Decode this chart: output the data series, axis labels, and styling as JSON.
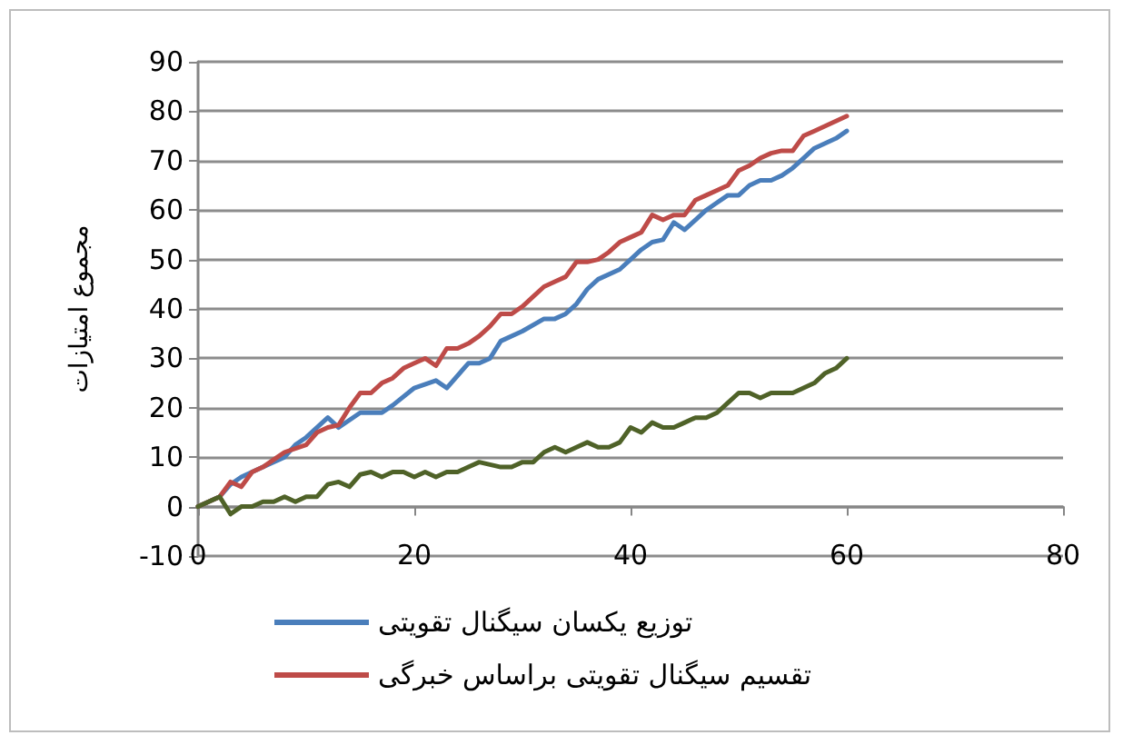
{
  "chart_data": {
    "type": "line",
    "ylabel": "مجموع امتیازات",
    "xlim": [
      0,
      80
    ],
    "xticks": [
      0,
      20,
      40,
      60,
      80
    ],
    "ylim": [
      -10,
      90
    ],
    "yticks": [
      -10,
      0,
      10,
      20,
      30,
      40,
      50,
      60,
      70,
      80,
      90
    ],
    "grid": "y",
    "legend": "bottom",
    "marker": "none",
    "line_style": "solid",
    "series": [
      {
        "name": "توزیع یکسان سیگنال تقویتی",
        "color": "#4a7ebb",
        "x": [
          0,
          2,
          3,
          4,
          6,
          8,
          9,
          10,
          12,
          13,
          15,
          17,
          18,
          20,
          22,
          23,
          25,
          26,
          27,
          28,
          30,
          32,
          33,
          34,
          35,
          36,
          37,
          39,
          40,
          41,
          42,
          43,
          44,
          45,
          46,
          47,
          48,
          49,
          50,
          51,
          52,
          53,
          54,
          55,
          56,
          57,
          58,
          59,
          60
        ],
        "values": [
          0,
          2,
          4.5,
          6,
          8,
          10,
          12.5,
          14,
          18,
          16,
          19,
          19,
          20.5,
          24,
          25.5,
          24,
          29,
          29,
          30,
          33.5,
          35.5,
          38,
          38,
          39,
          41,
          44,
          46,
          48,
          50,
          52,
          53.5,
          54,
          57.5,
          56,
          58,
          60,
          61.5,
          63,
          63,
          65,
          66,
          66,
          67,
          68.5,
          70.5,
          72.5,
          73.5,
          74.5,
          76
        ]
      },
      {
        "name": "تقسیم سیگنال تقویتی براساس خبرگی",
        "color": "#be4b48",
        "x": [
          0,
          2,
          3,
          4,
          5,
          6,
          7,
          8,
          10,
          11,
          12,
          13,
          14,
          15,
          16,
          17,
          18,
          19,
          20,
          21,
          22,
          23,
          24,
          25,
          26,
          27,
          28,
          29,
          30,
          31,
          32,
          33,
          34,
          35,
          36,
          37,
          38,
          39,
          40,
          41,
          42,
          43,
          44,
          45,
          46,
          47,
          48,
          49,
          50,
          51,
          52,
          53,
          54,
          55,
          56,
          57,
          58,
          59,
          60
        ],
        "values": [
          0,
          2,
          5,
          4,
          7,
          8,
          9.5,
          11,
          12.5,
          15,
          16,
          16.5,
          20,
          23,
          23,
          25,
          26,
          28,
          29,
          30,
          28.5,
          32,
          32,
          33,
          34.5,
          36.5,
          39,
          39,
          40.5,
          42.5,
          44.5,
          45.5,
          46.5,
          49.5,
          49.5,
          50,
          51.5,
          53.5,
          54.5,
          55.5,
          59,
          58,
          59,
          59,
          62,
          63,
          64,
          65,
          68,
          69,
          70.5,
          71.5,
          72,
          72,
          75,
          76,
          77,
          78,
          79
        ]
      },
      {
        "color": "#4f6228",
        "x": [
          0,
          2,
          3,
          4,
          5,
          6,
          7,
          8,
          9,
          10,
          11,
          12,
          13,
          14,
          15,
          16,
          17,
          18,
          19,
          20,
          21,
          22,
          23,
          24,
          25,
          26,
          27,
          28,
          29,
          30,
          31,
          32,
          33,
          34,
          35,
          36,
          37,
          38,
          39,
          40,
          41,
          42,
          43,
          44,
          45,
          46,
          47,
          48,
          49,
          50,
          51,
          52,
          53,
          54,
          55,
          56,
          57,
          58,
          59,
          60
        ],
        "values": [
          0,
          2,
          -1.5,
          0,
          0,
          1,
          1,
          2,
          1,
          2,
          2,
          4.5,
          5,
          4,
          6.5,
          7,
          6,
          7,
          7,
          6,
          7,
          6,
          7,
          7,
          8,
          9,
          8.5,
          8,
          8,
          9,
          9,
          11,
          12,
          11,
          12,
          13,
          12,
          12,
          13,
          16,
          15,
          17,
          16,
          16,
          17,
          18,
          18,
          19,
          21,
          23,
          23,
          22,
          23,
          23,
          23,
          24,
          25,
          27,
          28,
          30
        ]
      }
    ]
  }
}
